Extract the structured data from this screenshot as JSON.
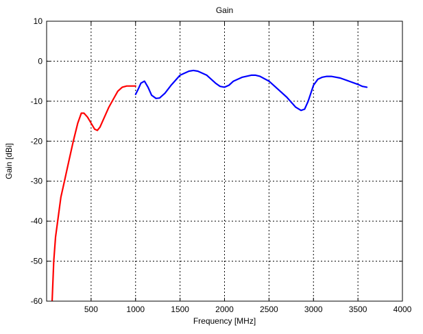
{
  "chart_data": {
    "type": "line",
    "title": "Gain",
    "xlabel": "Frequency [MHz]",
    "ylabel": "Gain [dBi]",
    "xlim": [
      0,
      4000
    ],
    "ylim": [
      -60,
      10
    ],
    "xticks": [
      500,
      1000,
      1500,
      2000,
      2500,
      3000,
      3500,
      4000
    ],
    "yticks": [
      10,
      0,
      -10,
      -20,
      -30,
      -40,
      -50,
      -60
    ],
    "grid": true,
    "grid_style": "dotted",
    "series": [
      {
        "color": "#ff0000",
        "x": [
          60,
          80,
          100,
          130,
          160,
          200,
          250,
          300,
          350,
          390,
          420,
          460,
          500,
          540,
          570,
          600,
          650,
          700,
          750,
          800,
          850,
          900,
          950,
          1000
        ],
        "y": [
          -61,
          -50,
          -44,
          -39,
          -34,
          -30,
          -25,
          -20,
          -15.5,
          -13,
          -13,
          -14,
          -15.5,
          -17,
          -17.3,
          -16.5,
          -14,
          -11.5,
          -9.5,
          -7.5,
          -6.5,
          -6.2,
          -6.2,
          -6.2
        ]
      },
      {
        "color": "#0000ff",
        "x": [
          1000,
          1030,
          1060,
          1100,
          1140,
          1180,
          1230,
          1270,
          1330,
          1400,
          1500,
          1600,
          1650,
          1700,
          1800,
          1900,
          1950,
          2000,
          2050,
          2100,
          2200,
          2300,
          2350,
          2400,
          2500,
          2600,
          2700,
          2800,
          2860,
          2900,
          2940,
          3000,
          3050,
          3100,
          3150,
          3200,
          3300,
          3400,
          3500,
          3550,
          3600
        ],
        "y": [
          -8.3,
          -7,
          -5.5,
          -5,
          -6.5,
          -8.5,
          -9.3,
          -9.2,
          -8,
          -6,
          -3.5,
          -2.5,
          -2.3,
          -2.5,
          -3.5,
          -5.5,
          -6.3,
          -6.5,
          -6,
          -5,
          -4,
          -3.5,
          -3.5,
          -3.8,
          -5,
          -7,
          -9,
          -11.5,
          -12.3,
          -12,
          -10,
          -6,
          -4.5,
          -4,
          -3.8,
          -3.8,
          -4.2,
          -5,
          -5.8,
          -6.3,
          -6.5
        ]
      }
    ]
  }
}
